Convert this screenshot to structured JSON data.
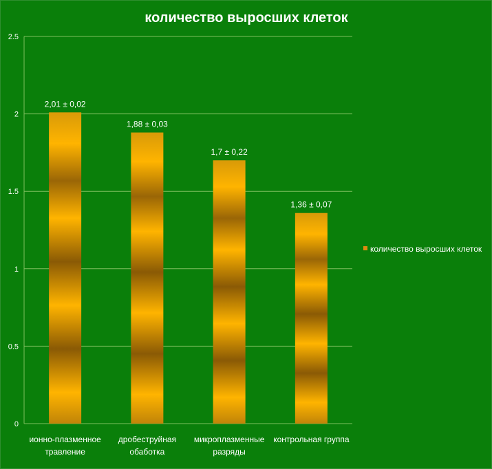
{
  "chart_data": {
    "type": "bar",
    "title": "количество выросших клеток",
    "categories": [
      [
        "ионно-плазменное",
        "травление"
      ],
      [
        "дробеструйная",
        "обаботка"
      ],
      [
        "микроплазменные",
        "разряды"
      ],
      [
        "контрольная группа"
      ]
    ],
    "series": [
      {
        "name": "количество выросших клеток",
        "values": [
          2.01,
          1.88,
          1.7,
          1.36
        ],
        "data_labels": [
          "2,01 ± 0,02",
          "1,88 ± 0,03",
          "1,7 ± 0,22",
          "1,36 ± 0,07"
        ]
      }
    ],
    "yticks": [
      "0",
      "0.5",
      "1",
      "1.5",
      "2",
      "2.5"
    ],
    "ylim": [
      0,
      2.5
    ],
    "grid": true,
    "legend_position": "right",
    "colors": {
      "background": "#0a7f0a",
      "bar_light": "#ffb400",
      "bar_dark": "#8a5a05",
      "grid": "#7fbf5f",
      "text": "#ffffff"
    }
  }
}
